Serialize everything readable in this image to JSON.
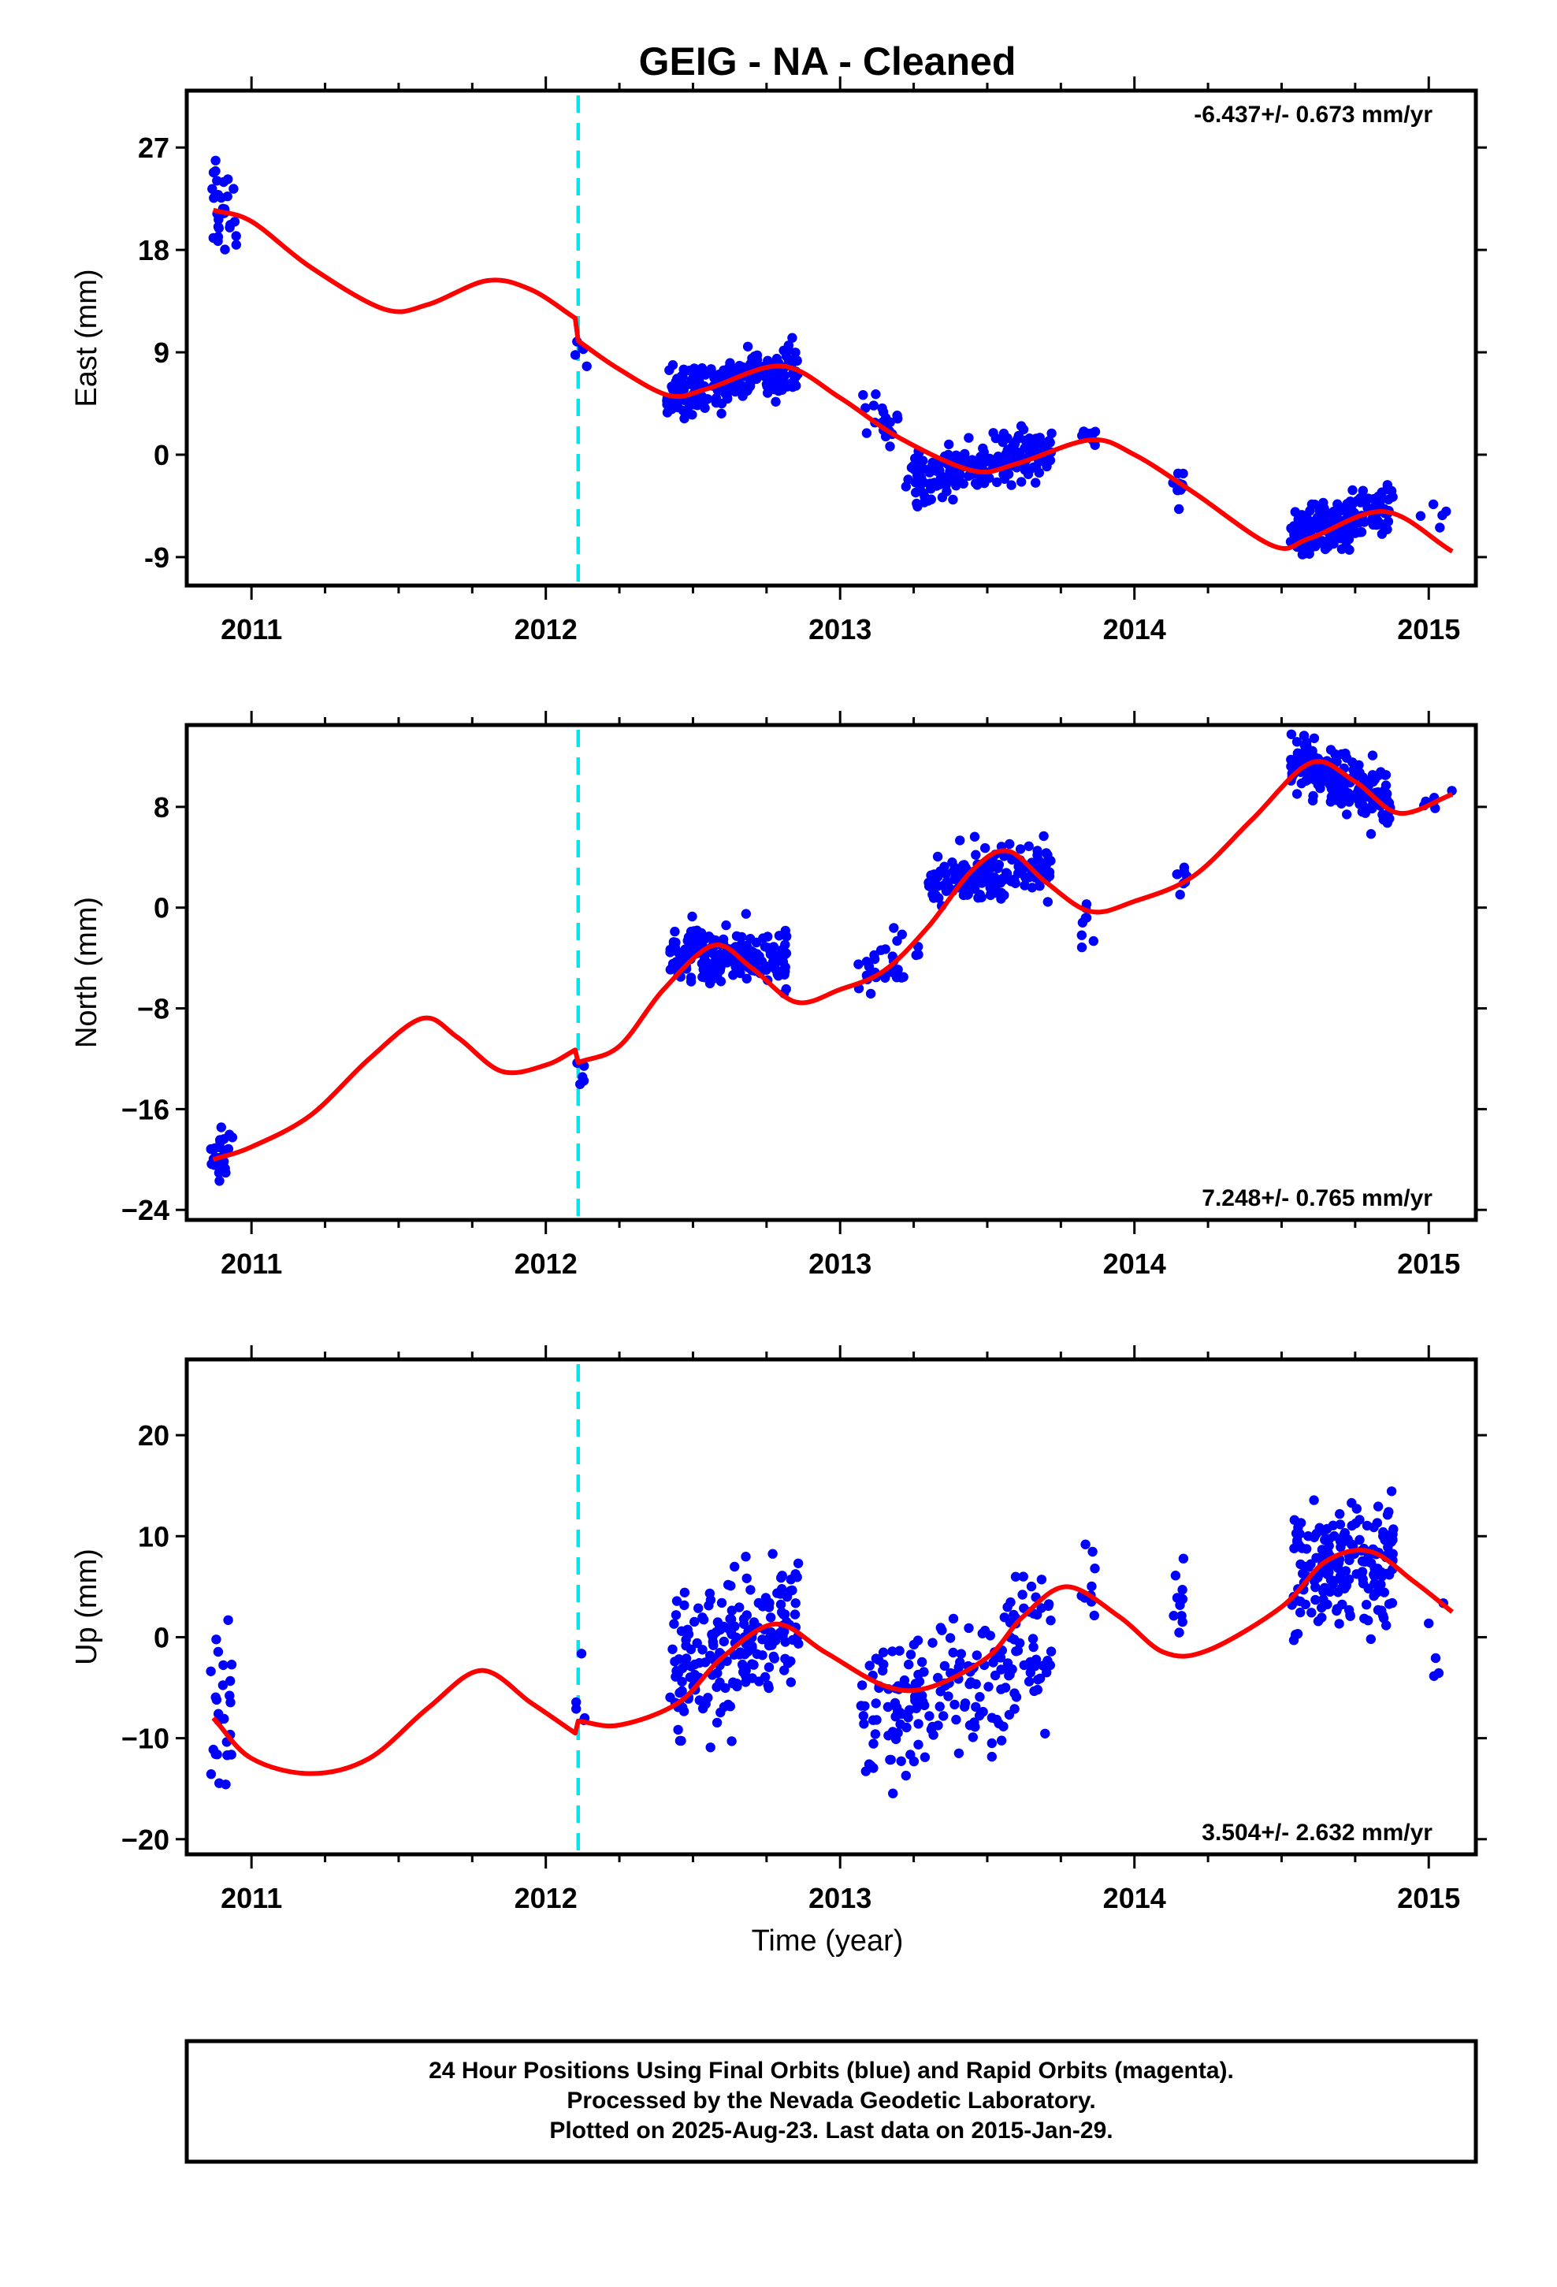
{
  "title": "GEIG  - NA - Cleaned",
  "footer": {
    "lines": [
      "24 Hour Positions Using Final Orbits (blue) and Rapid Orbits (magenta).",
      "Processed by the Nevada Geodetic Laboratory.",
      "Plotted on 2025-Aug-23. Last data on 2015-Jan-29."
    ]
  },
  "x_axis_label": "Time (year)",
  "colors": {
    "points": "#0000ff",
    "model": "#ff0000",
    "event": "#00e5ee",
    "frame": "#000000"
  },
  "chart_data": [
    {
      "type": "scatter",
      "ylabel": "East (mm)",
      "xlim": [
        2010.78,
        2015.16
      ],
      "ylim": [
        -11.5,
        32
      ],
      "yticks": [
        27,
        18,
        9,
        0,
        -9
      ],
      "xticks": [
        2011,
        2012,
        2013,
        2014,
        2015
      ],
      "rate_text": "-6.437+/- 0.673 mm/yr",
      "rate_position": "top-right",
      "event_x": 2012.11,
      "model": {
        "x": [
          2010.87,
          2011.0,
          2011.2,
          2011.45,
          2011.6,
          2011.8,
          2011.95,
          2012.1,
          2012.11,
          2012.25,
          2012.42,
          2012.55,
          2012.8,
          2013.0,
          2013.2,
          2013.45,
          2013.6,
          2013.85,
          2014.0,
          2014.2,
          2014.47,
          2014.6,
          2014.85,
          2015.08
        ],
        "y": [
          21.5,
          20.5,
          16.5,
          12.8,
          13.2,
          15.3,
          14.5,
          12,
          10,
          7.5,
          5.2,
          5.8,
          7.8,
          5,
          1.5,
          -1.4,
          -0.8,
          1.3,
          0,
          -3.3,
          -8,
          -7.3,
          -5,
          -8.5
        ]
      },
      "clusters": [
        {
          "x0": 2010.86,
          "x1": 2010.95,
          "y": 21,
          "sd": 3,
          "n": 30,
          "trend": 0
        },
        {
          "x0": 2012.1,
          "x1": 2012.14,
          "y": 10,
          "sd": 3,
          "n": 5,
          "trend": 0
        },
        {
          "x0": 2012.41,
          "x1": 2012.86,
          "y": 6.5,
          "sd": 1.4,
          "n": 220,
          "trend": 2.5
        },
        {
          "x0": 2013.07,
          "x1": 2013.2,
          "y": 3,
          "sd": 1.3,
          "n": 20,
          "trend": -2
        },
        {
          "x0": 2013.22,
          "x1": 2013.72,
          "y": -1,
          "sd": 1.5,
          "n": 200,
          "trend": 2.5
        },
        {
          "x0": 2013.82,
          "x1": 2013.87,
          "y": 1.5,
          "sd": 1,
          "n": 12,
          "trend": 0
        },
        {
          "x0": 2014.13,
          "x1": 2014.17,
          "y": -3,
          "sd": 1,
          "n": 10,
          "trend": 0
        },
        {
          "x0": 2014.53,
          "x1": 2014.88,
          "y": -6,
          "sd": 1.5,
          "n": 180,
          "trend": 2.5
        },
        {
          "x0": 2014.97,
          "x1": 2015.08,
          "y": -6.5,
          "sd": 2,
          "n": 5,
          "trend": 0
        }
      ]
    },
    {
      "type": "scatter",
      "ylabel": "North (mm)",
      "xlim": [
        2010.78,
        2015.16
      ],
      "ylim": [
        -24.8,
        14.5
      ],
      "yticks": [
        8,
        0,
        -8,
        -16,
        -24
      ],
      "xticks": [
        2011,
        2012,
        2013,
        2014,
        2015
      ],
      "tick_labels": [
        "8",
        "0",
        "−8",
        "−16",
        "−24"
      ],
      "rate_text": "7.248+/- 0.765 mm/yr",
      "rate_position": "bottom-right",
      "event_x": 2012.11,
      "model": {
        "x": [
          2010.87,
          2011.0,
          2011.2,
          2011.4,
          2011.58,
          2011.7,
          2011.85,
          2012.0,
          2012.1,
          2012.11,
          2012.25,
          2012.4,
          2012.57,
          2012.7,
          2012.85,
          2013.0,
          2013.15,
          2013.3,
          2013.45,
          2013.57,
          2013.7,
          2013.85,
          2014.0,
          2014.2,
          2014.4,
          2014.6,
          2014.75,
          2014.9,
          2015.08
        ],
        "y": [
          -20,
          -19,
          -16.5,
          -12,
          -8.8,
          -10.3,
          -13,
          -12.5,
          -11.3,
          -12.3,
          -11,
          -6.5,
          -3,
          -4.8,
          -7.5,
          -6.5,
          -5,
          -1.5,
          3,
          4.5,
          2,
          -0.3,
          0.5,
          2.5,
          7,
          11.5,
          10,
          7.5,
          9
        ]
      },
      "clusters": [
        {
          "x0": 2010.86,
          "x1": 2010.94,
          "y": -20,
          "sd": 1.3,
          "n": 25,
          "trend": 0
        },
        {
          "x0": 2012.1,
          "x1": 2012.14,
          "y": -13,
          "sd": 1.2,
          "n": 5,
          "trend": 0
        },
        {
          "x0": 2012.42,
          "x1": 2012.82,
          "y": -3.8,
          "sd": 1.4,
          "n": 200,
          "trend": -1
        },
        {
          "x0": 2013.05,
          "x1": 2013.27,
          "y": -4.5,
          "sd": 1.5,
          "n": 30,
          "trend": 3
        },
        {
          "x0": 2013.3,
          "x1": 2013.72,
          "y": 2.5,
          "sd": 1.6,
          "n": 160,
          "trend": 1
        },
        {
          "x0": 2013.82,
          "x1": 2013.87,
          "y": -1,
          "sd": 1.5,
          "n": 8,
          "trend": 0
        },
        {
          "x0": 2014.14,
          "x1": 2014.18,
          "y": 2.5,
          "sd": 1.2,
          "n": 8,
          "trend": 0
        },
        {
          "x0": 2014.53,
          "x1": 2014.87,
          "y": 10,
          "sd": 1.5,
          "n": 180,
          "trend": -3
        },
        {
          "x0": 2014.96,
          "x1": 2015.08,
          "y": 8.5,
          "sd": 0.8,
          "n": 6,
          "trend": 0
        }
      ]
    },
    {
      "type": "scatter",
      "ylabel": "Up (mm)",
      "xlim": [
        2010.78,
        2015.16
      ],
      "ylim": [
        -21.5,
        27.5
      ],
      "yticks": [
        20,
        10,
        0,
        -10,
        -20
      ],
      "xticks": [
        2011,
        2012,
        2013,
        2014,
        2015
      ],
      "tick_labels": [
        "20",
        "10",
        "0",
        "−10",
        "−20"
      ],
      "rate_text": "3.504+/- 2.632 mm/yr",
      "rate_position": "bottom-right",
      "event_x": 2012.11,
      "model": {
        "x": [
          2010.87,
          2011.0,
          2011.2,
          2011.4,
          2011.6,
          2011.78,
          2011.95,
          2012.1,
          2012.11,
          2012.25,
          2012.45,
          2012.6,
          2012.78,
          2012.95,
          2013.15,
          2013.3,
          2013.5,
          2013.62,
          2013.77,
          2013.95,
          2014.1,
          2014.25,
          2014.5,
          2014.65,
          2014.8,
          2014.95,
          2015.08
        ],
        "y": [
          -8,
          -12,
          -13.5,
          -12,
          -7,
          -3.3,
          -6.5,
          -9.5,
          -8.3,
          -8.7,
          -6.5,
          -2,
          1.3,
          -1.5,
          -4.8,
          -5,
          -2,
          2,
          5,
          2,
          -1.5,
          -1.3,
          3,
          7.5,
          8.5,
          5.5,
          2.5
        ]
      },
      "clusters": [
        {
          "x0": 2010.86,
          "x1": 2010.94,
          "y": -9,
          "sd": 5,
          "n": 25,
          "trend": 0
        },
        {
          "x0": 2012.1,
          "x1": 2012.14,
          "y": -6,
          "sd": 4,
          "n": 5,
          "trend": 0
        },
        {
          "x0": 2012.42,
          "x1": 2012.86,
          "y": -1,
          "sd": 4.5,
          "n": 200,
          "trend": 6
        },
        {
          "x0": 2013.07,
          "x1": 2013.72,
          "y": -5,
          "sd": 4.5,
          "n": 200,
          "trend": 8
        },
        {
          "x0": 2013.82,
          "x1": 2013.87,
          "y": 6,
          "sd": 3,
          "n": 10,
          "trend": 0
        },
        {
          "x0": 2014.13,
          "x1": 2014.17,
          "y": 2,
          "sd": 3,
          "n": 10,
          "trend": 0
        },
        {
          "x0": 2014.53,
          "x1": 2014.88,
          "y": 7,
          "sd": 4,
          "n": 180,
          "trend": 2
        },
        {
          "x0": 2014.97,
          "x1": 2015.08,
          "y": -2,
          "sd": 3,
          "n": 5,
          "trend": 0
        }
      ]
    }
  ]
}
